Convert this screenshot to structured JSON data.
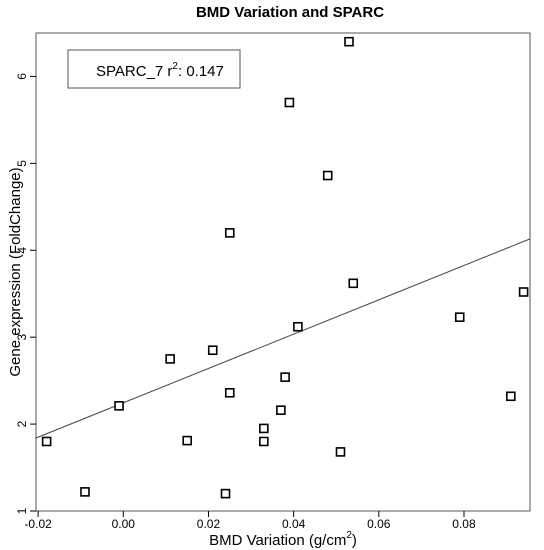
{
  "chart_data": {
    "type": "scatter",
    "title": "BMD Variation and SPARC",
    "xlabel_main": "BMD Variation (g/cm",
    "xlabel_sup": "2",
    "xlabel_end": ")",
    "ylabel": "Gene expression (FoldChange)",
    "xlim": [
      -0.0205,
      0.0955
    ],
    "ylim": [
      1.0,
      6.5
    ],
    "x_ticks": [
      -0.02,
      0.0,
      0.02,
      0.04,
      0.06,
      0.08
    ],
    "x_tick_labels": [
      "-0.02",
      "0.00",
      "0.02",
      "0.04",
      "0.06",
      "0.08"
    ],
    "y_ticks": [
      1,
      2,
      3,
      4,
      5,
      6
    ],
    "y_tick_labels": [
      "1",
      "2",
      "3",
      "4",
      "5",
      "6"
    ],
    "marker": "open-square",
    "points": [
      {
        "x": -0.018,
        "y": 1.8
      },
      {
        "x": -0.009,
        "y": 1.22
      },
      {
        "x": -0.001,
        "y": 2.21
      },
      {
        "x": 0.011,
        "y": 2.75
      },
      {
        "x": 0.015,
        "y": 1.81
      },
      {
        "x": 0.021,
        "y": 2.85
      },
      {
        "x": 0.024,
        "y": 1.2
      },
      {
        "x": 0.025,
        "y": 2.36
      },
      {
        "x": 0.025,
        "y": 4.2
      },
      {
        "x": 0.033,
        "y": 1.95
      },
      {
        "x": 0.033,
        "y": 1.8
      },
      {
        "x": 0.037,
        "y": 2.16
      },
      {
        "x": 0.038,
        "y": 2.54
      },
      {
        "x": 0.039,
        "y": 5.7
      },
      {
        "x": 0.041,
        "y": 3.12
      },
      {
        "x": 0.048,
        "y": 4.86
      },
      {
        "x": 0.051,
        "y": 1.68
      },
      {
        "x": 0.053,
        "y": 6.4
      },
      {
        "x": 0.054,
        "y": 3.62
      },
      {
        "x": 0.079,
        "y": 3.23
      },
      {
        "x": 0.091,
        "y": 2.32
      },
      {
        "x": 0.094,
        "y": 3.52
      }
    ],
    "regression": {
      "slope": 19.75,
      "intercept": 2.245
    },
    "legend": {
      "position": "top-left",
      "series": "SPARC_7 r",
      "r_sup": "2",
      "r_value": ": 0.147"
    }
  }
}
